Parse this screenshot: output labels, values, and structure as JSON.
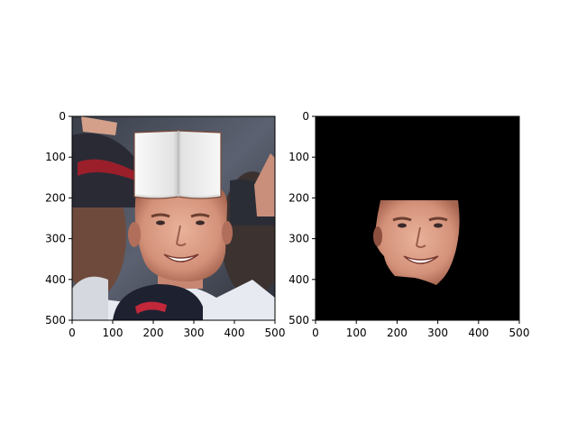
{
  "chart_data": [
    {
      "type": "image",
      "title": "",
      "xlabel": "",
      "ylabel": "",
      "xlim": [
        0,
        500
      ],
      "ylim": [
        500,
        0
      ],
      "xticks": [
        "0",
        "100",
        "200",
        "300",
        "400",
        "500"
      ],
      "yticks": [
        "0",
        "100",
        "200",
        "300",
        "400",
        "500"
      ],
      "grid": false,
      "content": "photo of a smiling man with a book overlaid on his forehead"
    },
    {
      "type": "image",
      "title": "",
      "xlabel": "",
      "ylabel": "",
      "xlim": [
        0,
        500
      ],
      "ylim": [
        500,
        0
      ],
      "xticks": [
        "0",
        "100",
        "200",
        "300",
        "400",
        "500"
      ],
      "yticks": [
        "0",
        "100",
        "200",
        "300",
        "400",
        "500"
      ],
      "grid": false,
      "content": "masked face region on a black background"
    }
  ],
  "colors": {
    "axis": "#000000",
    "mask_background": "#000000",
    "book_page": "#f1f1f1",
    "skin": "#d99a80"
  }
}
